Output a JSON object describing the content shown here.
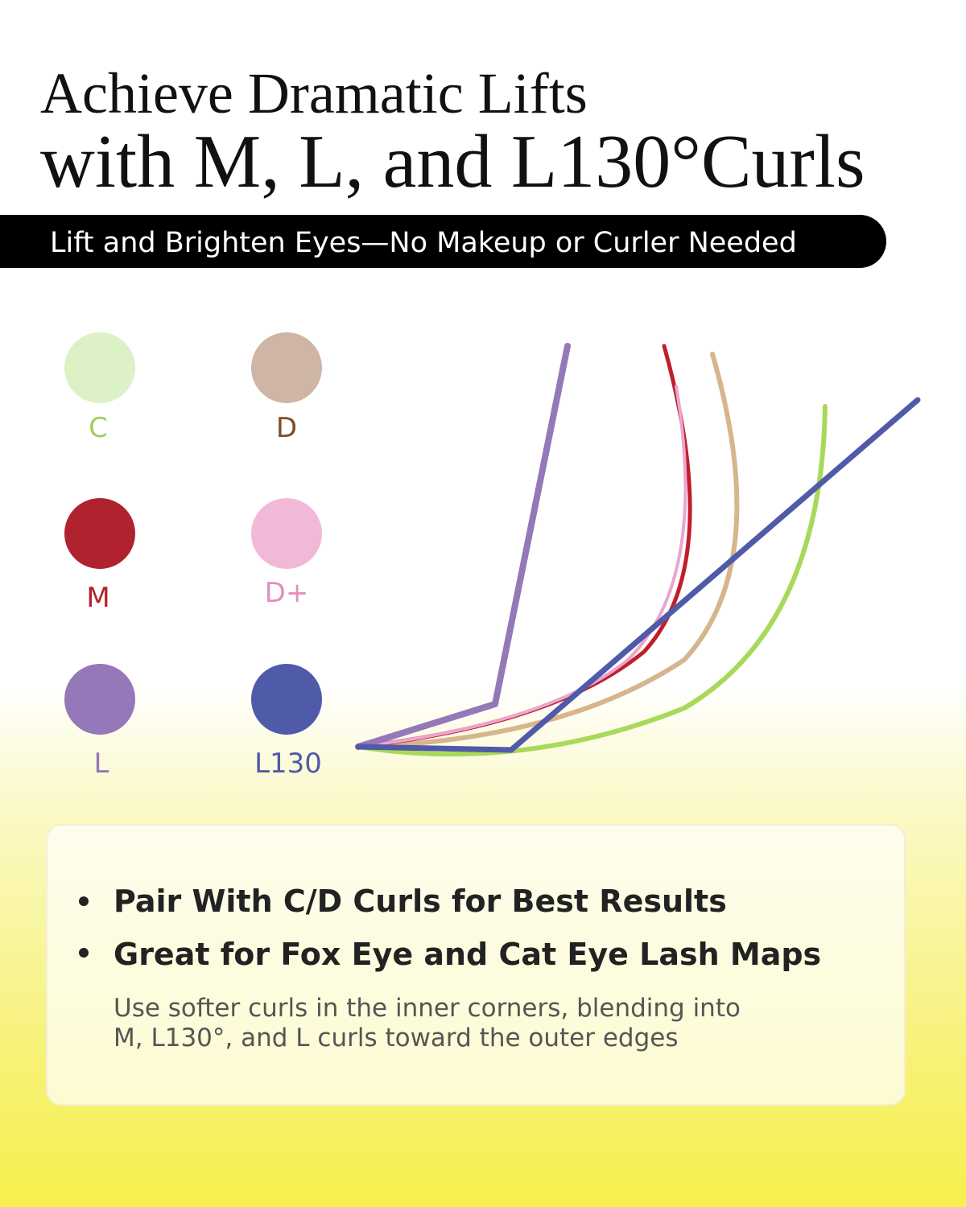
{
  "header": {
    "title_line1": "Achieve Dramatic Lifts",
    "title_line2": "with M, L, and L130°Curls",
    "subtitle": "Lift and Brighten Eyes—No Makeup or Curler Needed"
  },
  "legend": [
    "C",
    "D",
    "M",
    "D+",
    "L",
    "L130"
  ],
  "tips": {
    "bullets": [
      "Pair With C/D Curls for Best Results",
      "Great for Fox Eye and Cat Eye Lash Maps"
    ],
    "note_lines": [
      "Use softer curls in the inner corners, blending into",
      "M, L130°, and L curls toward the outer edges"
    ]
  }
}
